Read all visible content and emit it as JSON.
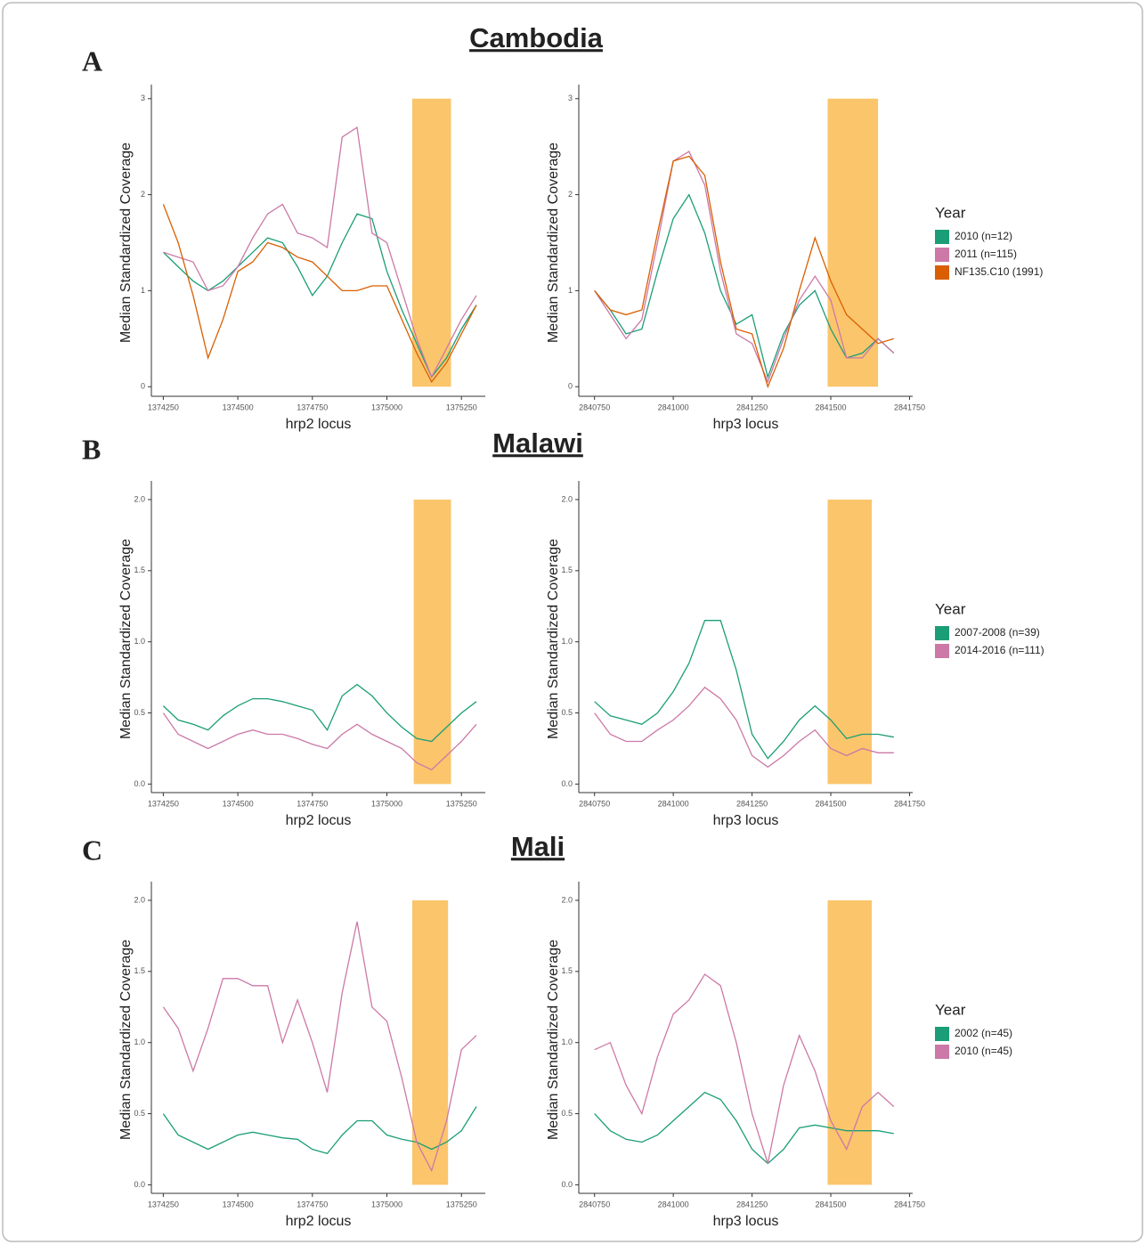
{
  "panels": [
    {
      "label": "A",
      "title": "Cambodia"
    },
    {
      "label": "B",
      "title": "Malawi"
    },
    {
      "label": "C",
      "title": "Mali"
    }
  ],
  "chart_data": [
    {
      "type": "line",
      "xlabel": "hrp2 locus",
      "ylabel": "Median Standardized Coverage",
      "x": [
        1374250,
        1374300,
        1374350,
        1374400,
        1374450,
        1374500,
        1374550,
        1374600,
        1374650,
        1374700,
        1374750,
        1374800,
        1374850,
        1374900,
        1374950,
        1375000,
        1375050,
        1375100,
        1375150,
        1375200,
        1375250,
        1375300
      ],
      "xlim": [
        1374210,
        1375330
      ],
      "xticks": [
        1374250,
        1374500,
        1374750,
        1375000,
        1375250
      ],
      "ylim": [
        -0.1,
        3.1
      ],
      "yticks": [
        0,
        1,
        2,
        3
      ],
      "highlight": [
        1375085,
        1375215
      ],
      "highlight_color": "#fbbf5c",
      "series": [
        {
          "color": "#1b9e77",
          "values": [
            1.4,
            1.25,
            1.1,
            1.0,
            1.1,
            1.25,
            1.4,
            1.55,
            1.5,
            1.25,
            0.95,
            1.15,
            1.5,
            1.8,
            1.75,
            1.2,
            0.8,
            0.45,
            0.1,
            0.3,
            0.6,
            0.85
          ]
        },
        {
          "color": "#cc79a7",
          "values": [
            1.4,
            1.35,
            1.3,
            1.0,
            1.05,
            1.25,
            1.55,
            1.8,
            1.9,
            1.6,
            1.55,
            1.45,
            2.6,
            2.7,
            1.6,
            1.5,
            1.0,
            0.5,
            0.1,
            0.4,
            0.7,
            0.95
          ]
        },
        {
          "color": "#d95f02",
          "values": [
            1.9,
            1.5,
            0.95,
            0.3,
            0.7,
            1.2,
            1.3,
            1.5,
            1.45,
            1.35,
            1.3,
            1.15,
            1.0,
            1.0,
            1.05,
            1.05,
            0.7,
            0.35,
            0.05,
            0.25,
            0.55,
            0.85
          ]
        }
      ]
    },
    {
      "type": "line",
      "xlabel": "hrp3 locus",
      "ylabel": "Median Standardized Coverage",
      "x": [
        2840750,
        2840800,
        2840850,
        2840900,
        2840950,
        2841000,
        2841050,
        2841100,
        2841150,
        2841200,
        2841250,
        2841300,
        2841350,
        2841400,
        2841450,
        2841500,
        2841550,
        2841600,
        2841650,
        2841700
      ],
      "xlim": [
        2840700,
        2841760
      ],
      "xticks": [
        2840750,
        2841000,
        2841250,
        2841500,
        2841750
      ],
      "ylim": [
        -0.1,
        3.1
      ],
      "yticks": [
        0,
        1,
        2,
        3
      ],
      "highlight": [
        2841490,
        2841650
      ],
      "highlight_color": "#fbbf5c",
      "legend_title": "Year",
      "series": [
        {
          "name": "2010 (n=12)",
          "color": "#1b9e77",
          "values": [
            1.0,
            0.8,
            0.55,
            0.6,
            1.2,
            1.75,
            2.0,
            1.6,
            1.0,
            0.65,
            0.75,
            0.1,
            0.55,
            0.85,
            1.0,
            0.6,
            0.3,
            0.35,
            0.5,
            0.35
          ]
        },
        {
          "name": "2011 (n=115)",
          "color": "#cc79a7",
          "values": [
            1.0,
            0.75,
            0.5,
            0.7,
            1.5,
            2.35,
            2.45,
            2.1,
            1.2,
            0.55,
            0.45,
            0.05,
            0.5,
            0.9,
            1.15,
            0.9,
            0.3,
            0.3,
            0.5,
            0.35
          ]
        },
        {
          "name": "NF135.C10 (1991)",
          "color": "#d95f02",
          "values": [
            1.0,
            0.8,
            0.75,
            0.8,
            1.6,
            2.35,
            2.4,
            2.2,
            1.3,
            0.6,
            0.55,
            0.0,
            0.4,
            1.0,
            1.55,
            1.1,
            0.75,
            0.6,
            0.45,
            0.5
          ]
        }
      ]
    },
    {
      "type": "line",
      "xlabel": "hrp2 locus",
      "ylabel": "Median Standardized Coverage",
      "x": [
        1374250,
        1374300,
        1374350,
        1374400,
        1374450,
        1374500,
        1374550,
        1374600,
        1374650,
        1374700,
        1374750,
        1374800,
        1374850,
        1374900,
        1374950,
        1375000,
        1375050,
        1375100,
        1375150,
        1375200,
        1375250,
        1375300
      ],
      "xlim": [
        1374210,
        1375330
      ],
      "xticks": [
        1374250,
        1374500,
        1374750,
        1375000,
        1375250
      ],
      "ylim": [
        -0.06,
        2.1
      ],
      "yticks": [
        {
          "value": 0,
          "label": "0.0"
        },
        {
          "value": 0.5,
          "label": "0.5"
        },
        {
          "value": 1,
          "label": "1.0"
        },
        {
          "value": 1.5,
          "label": "1.5"
        },
        {
          "value": 2,
          "label": "2.0"
        }
      ],
      "highlight": [
        1375090,
        1375215
      ],
      "highlight_color": "#fbbf5c",
      "series": [
        {
          "color": "#1b9e77",
          "values": [
            0.55,
            0.45,
            0.42,
            0.38,
            0.48,
            0.55,
            0.6,
            0.6,
            0.58,
            0.55,
            0.52,
            0.38,
            0.62,
            0.7,
            0.62,
            0.5,
            0.4,
            0.32,
            0.3,
            0.4,
            0.5,
            0.58
          ]
        },
        {
          "color": "#cc79a7",
          "values": [
            0.5,
            0.35,
            0.3,
            0.25,
            0.3,
            0.35,
            0.38,
            0.35,
            0.35,
            0.32,
            0.28,
            0.25,
            0.35,
            0.42,
            0.35,
            0.3,
            0.25,
            0.15,
            0.1,
            0.2,
            0.3,
            0.42
          ]
        }
      ]
    },
    {
      "type": "line",
      "xlabel": "hrp3 locus",
      "ylabel": "Median Standardized Coverage",
      "x": [
        2840750,
        2840800,
        2840850,
        2840900,
        2840950,
        2841000,
        2841050,
        2841100,
        2841150,
        2841200,
        2841250,
        2841300,
        2841350,
        2841400,
        2841450,
        2841500,
        2841550,
        2841600,
        2841650,
        2841700
      ],
      "xlim": [
        2840700,
        2841760
      ],
      "xticks": [
        2840750,
        2841000,
        2841250,
        2841500,
        2841750
      ],
      "ylim": [
        -0.06,
        2.1
      ],
      "yticks": [
        {
          "value": 0,
          "label": "0.0"
        },
        {
          "value": 0.5,
          "label": "0.5"
        },
        {
          "value": 1,
          "label": "1.0"
        },
        {
          "value": 1.5,
          "label": "1.5"
        },
        {
          "value": 2,
          "label": "2.0"
        }
      ],
      "highlight": [
        2841490,
        2841630
      ],
      "highlight_color": "#fbbf5c",
      "legend_title": "Year",
      "series": [
        {
          "name": "2007-2008 (n=39)",
          "color": "#1b9e77",
          "values": [
            0.58,
            0.48,
            0.45,
            0.42,
            0.5,
            0.65,
            0.85,
            1.15,
            1.15,
            0.8,
            0.35,
            0.18,
            0.3,
            0.45,
            0.55,
            0.45,
            0.32,
            0.35,
            0.35,
            0.33
          ]
        },
        {
          "name": "2014-2016 (n=111)",
          "color": "#cc79a7",
          "values": [
            0.5,
            0.35,
            0.3,
            0.3,
            0.38,
            0.45,
            0.55,
            0.68,
            0.6,
            0.45,
            0.2,
            0.12,
            0.2,
            0.3,
            0.38,
            0.25,
            0.2,
            0.25,
            0.22,
            0.22
          ]
        }
      ]
    },
    {
      "type": "line",
      "xlabel": "hrp2 locus",
      "ylabel": "Median Standardized Coverage",
      "x": [
        1374250,
        1374300,
        1374350,
        1374400,
        1374450,
        1374500,
        1374550,
        1374600,
        1374650,
        1374700,
        1374750,
        1374800,
        1374850,
        1374900,
        1374950,
        1375000,
        1375050,
        1375100,
        1375150,
        1375200,
        1375250,
        1375300
      ],
      "xlim": [
        1374210,
        1375330
      ],
      "xticks": [
        1374250,
        1374500,
        1374750,
        1375000,
        1375250
      ],
      "ylim": [
        -0.06,
        2.1
      ],
      "yticks": [
        {
          "value": 0,
          "label": "0.0"
        },
        {
          "value": 0.5,
          "label": "0.5"
        },
        {
          "value": 1,
          "label": "1.0"
        },
        {
          "value": 1.5,
          "label": "1.5"
        },
        {
          "value": 2,
          "label": "2.0"
        }
      ],
      "highlight": [
        1375085,
        1375205
      ],
      "highlight_color": "#fbbf5c",
      "series": [
        {
          "color": "#1b9e77",
          "values": [
            0.5,
            0.35,
            0.3,
            0.25,
            0.3,
            0.35,
            0.37,
            0.35,
            0.33,
            0.32,
            0.25,
            0.22,
            0.35,
            0.45,
            0.45,
            0.35,
            0.32,
            0.3,
            0.25,
            0.3,
            0.38,
            0.55
          ]
        },
        {
          "color": "#cc79a7",
          "values": [
            1.25,
            1.1,
            0.8,
            1.1,
            1.45,
            1.45,
            1.4,
            1.4,
            1.0,
            1.3,
            1.0,
            0.65,
            1.35,
            1.85,
            1.25,
            1.15,
            0.75,
            0.3,
            0.1,
            0.45,
            0.95,
            1.05
          ]
        }
      ]
    },
    {
      "type": "line",
      "xlabel": "hrp3 locus",
      "ylabel": "Median Standardized Coverage",
      "x": [
        2840750,
        2840800,
        2840850,
        2840900,
        2840950,
        2841000,
        2841050,
        2841100,
        2841150,
        2841200,
        2841250,
        2841300,
        2841350,
        2841400,
        2841450,
        2841500,
        2841550,
        2841600,
        2841650,
        2841700
      ],
      "xlim": [
        2840700,
        2841760
      ],
      "xticks": [
        2840750,
        2841000,
        2841250,
        2841500,
        2841750
      ],
      "ylim": [
        -0.06,
        2.1
      ],
      "yticks": [
        {
          "value": 0,
          "label": "0.0"
        },
        {
          "value": 0.5,
          "label": "0.5"
        },
        {
          "value": 1,
          "label": "1.0"
        },
        {
          "value": 1.5,
          "label": "1.5"
        },
        {
          "value": 2,
          "label": "2.0"
        }
      ],
      "highlight": [
        2841490,
        2841630
      ],
      "highlight_color": "#fbbf5c",
      "legend_title": "Year",
      "series": [
        {
          "name": "2002 (n=45)",
          "color": "#1b9e77",
          "values": [
            0.5,
            0.38,
            0.32,
            0.3,
            0.35,
            0.45,
            0.55,
            0.65,
            0.6,
            0.45,
            0.25,
            0.15,
            0.25,
            0.4,
            0.42,
            0.4,
            0.38,
            0.38,
            0.38,
            0.36
          ]
        },
        {
          "name": "2010 (n=45)",
          "color": "#cc79a7",
          "values": [
            0.95,
            1.0,
            0.7,
            0.5,
            0.9,
            1.2,
            1.3,
            1.48,
            1.4,
            1.0,
            0.5,
            0.15,
            0.7,
            1.05,
            0.8,
            0.45,
            0.25,
            0.55,
            0.65,
            0.55
          ]
        }
      ]
    }
  ]
}
